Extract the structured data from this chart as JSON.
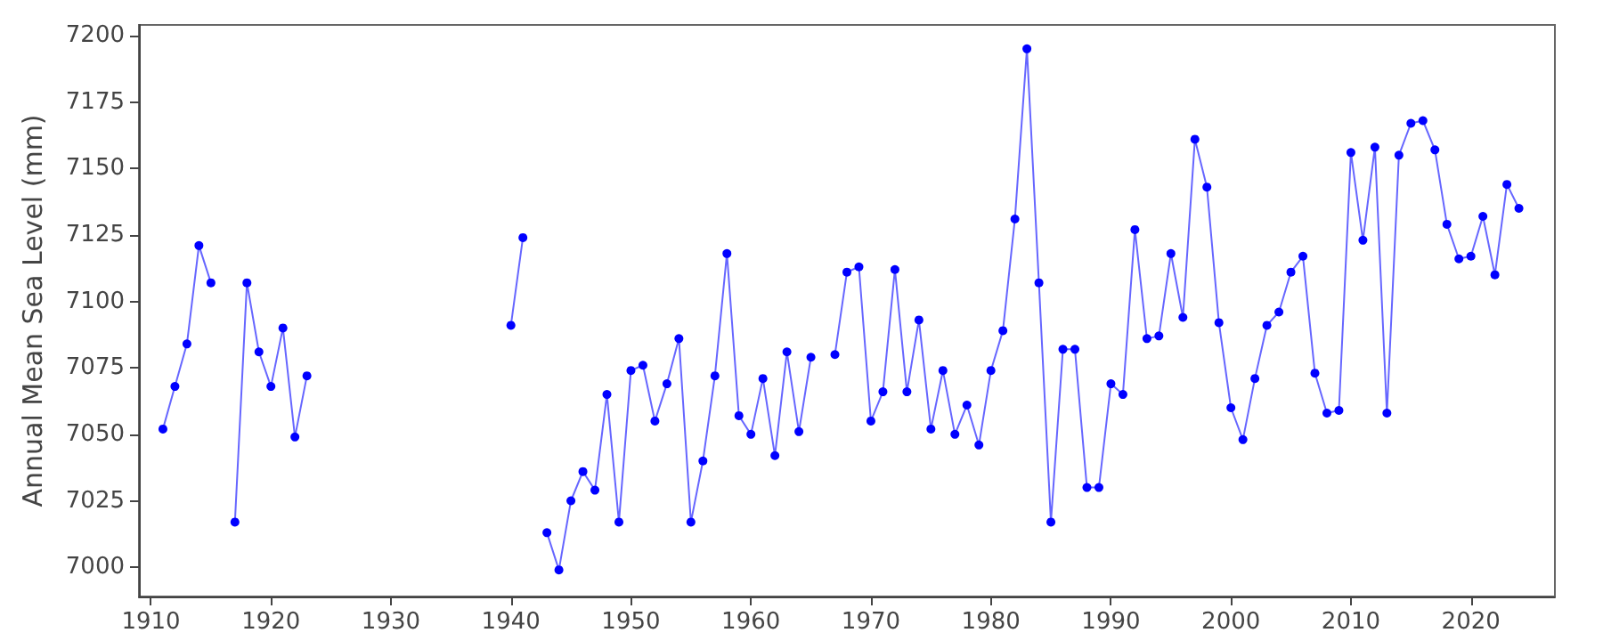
{
  "chart_data": {
    "type": "line",
    "ylabel": "Annual Mean Sea Level (mm)",
    "x": [
      1911,
      1912,
      1913,
      1914,
      1915,
      1916,
      1917,
      1918,
      1919,
      1920,
      1921,
      1922,
      1923,
      1924,
      1940,
      1941,
      1942,
      1943,
      1944,
      1945,
      1946,
      1947,
      1948,
      1949,
      1950,
      1951,
      1952,
      1953,
      1954,
      1955,
      1956,
      1957,
      1958,
      1959,
      1960,
      1961,
      1962,
      1963,
      1964,
      1965,
      1966,
      1967,
      1968,
      1969,
      1970,
      1971,
      1972,
      1973,
      1974,
      1975,
      1976,
      1977,
      1978,
      1979,
      1980,
      1981,
      1982,
      1983,
      1984,
      1985,
      1986,
      1987,
      1988,
      1989,
      1990,
      1991,
      1992,
      1993,
      1994,
      1995,
      1996,
      1997,
      1998,
      1999,
      2000,
      2001,
      2002,
      2003,
      2004,
      2005,
      2006,
      2007,
      2008,
      2009,
      2010,
      2011,
      2012,
      2013,
      2014,
      2015,
      2016,
      2017,
      2018,
      2019,
      2020,
      2021,
      2022,
      2023,
      2024
    ],
    "series": [
      {
        "color": "#0000ff",
        "values": [
          7052,
          7068,
          7084,
          7121,
          7107,
          null,
          7017,
          7107,
          7081,
          7068,
          7090,
          7049,
          7072,
          null,
          7091,
          7124,
          null,
          7013,
          6999,
          7025,
          7036,
          7029,
          7065,
          7017,
          7074,
          7076,
          7055,
          7069,
          7086,
          7017,
          7040,
          7072,
          7118,
          7057,
          7050,
          7071,
          7042,
          7081,
          7051,
          7079,
          null,
          7080,
          7111,
          7113,
          7055,
          7066,
          7112,
          7066,
          7093,
          7052,
          7074,
          7050,
          7061,
          7046,
          7074,
          7089,
          7131,
          7195,
          7107,
          7017,
          7082,
          7082,
          7030,
          7030,
          7069,
          7065,
          7127,
          7086,
          7087,
          7118,
          7094,
          7161,
          7143,
          7092,
          7060,
          7048,
          7071,
          7091,
          7096,
          7111,
          7117,
          7073,
          7058,
          7059,
          7156,
          7123,
          7158,
          7058,
          7155,
          7167,
          7168,
          7157,
          7129,
          7116,
          7117,
          7132,
          7110,
          7144,
          7135
        ]
      }
    ],
    "xlim": [
      1909,
      2027
    ],
    "xticks": [
      1910,
      1920,
      1930,
      1940,
      1950,
      1960,
      1970,
      1980,
      1990,
      2000,
      2010,
      2020
    ],
    "ylim": [
      6989,
      7204
    ],
    "yticks": [
      7000,
      7025,
      7050,
      7075,
      7100,
      7125,
      7150,
      7175,
      7200
    ],
    "grid": false,
    "marker": "circle",
    "line_style": "solid"
  }
}
